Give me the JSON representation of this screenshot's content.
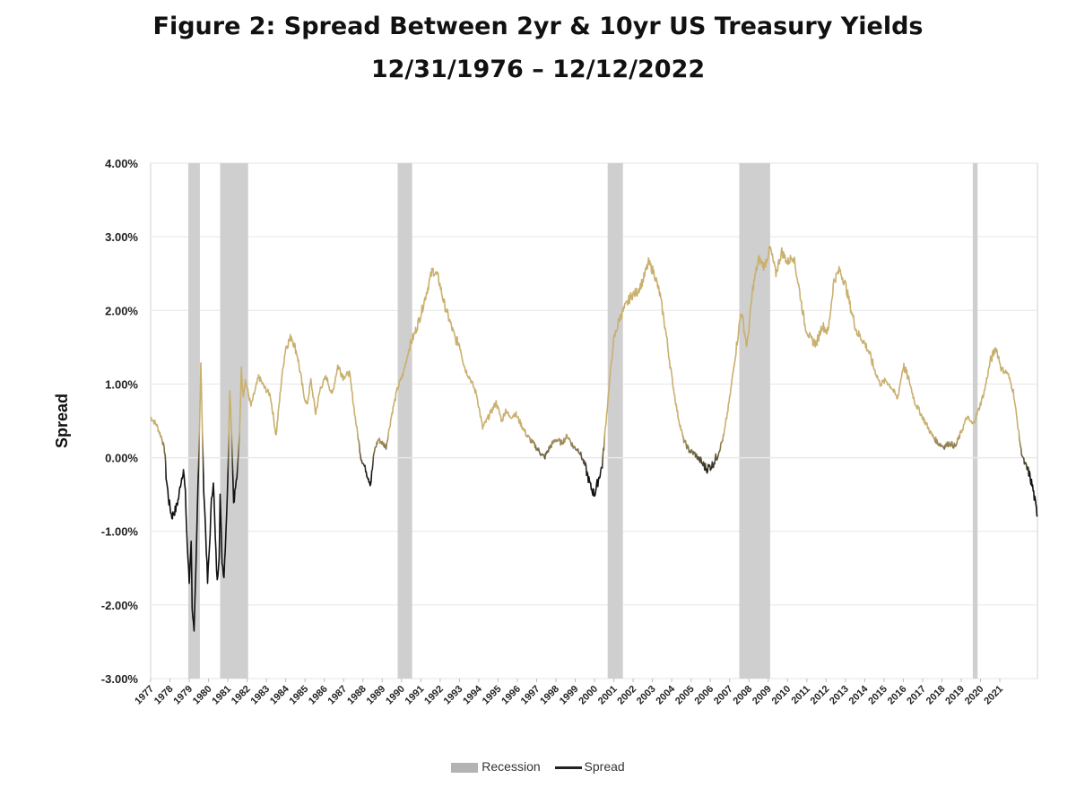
{
  "chart_data": {
    "type": "line",
    "title": "Figure 2:  Spread Between 2yr & 10yr US Treasury Yields",
    "subtitle": "12/31/1976 – 12/12/2022",
    "xlabel": "",
    "ylabel": "Spread",
    "ylim": [
      -3.0,
      4.0
    ],
    "yticks": [
      "4.00%",
      "3.00%",
      "2.00%",
      "1.00%",
      "0.00%",
      "-1.00%",
      "-2.00%",
      "-3.00%"
    ],
    "ytick_values": [
      4,
      3,
      2,
      1,
      0,
      -1,
      -2,
      -3
    ],
    "xlim": [
      1977.0,
      2022.95
    ],
    "xticks": [
      "1977",
      "1978",
      "1979",
      "1980",
      "1981",
      "1982",
      "1983",
      "1984",
      "1985",
      "1986",
      "1987",
      "1988",
      "1989",
      "1990",
      "1991",
      "1992",
      "1993",
      "1994",
      "1995",
      "1996",
      "1997",
      "1998",
      "1999",
      "2000",
      "2001",
      "2002",
      "2003",
      "2004",
      "2005",
      "2006",
      "2007",
      "2008",
      "2009",
      "2010",
      "2011",
      "2012",
      "2013",
      "2014",
      "2015",
      "2016",
      "2017",
      "2018",
      "2019",
      "2020",
      "2021"
    ],
    "colors": {
      "positive": "#c9b06e",
      "negative": "#111111",
      "recession": "#cfcfcf",
      "zero": "#e3e3e3",
      "grid": "#e6e6e6",
      "axis": "#d0d0d0"
    },
    "recessions": [
      [
        1978.95,
        1979.55
      ],
      [
        1980.6,
        1982.05
      ],
      [
        1989.8,
        1990.55
      ],
      [
        2000.68,
        2001.47
      ],
      [
        2007.5,
        2009.1
      ],
      [
        2019.6,
        2019.85
      ]
    ],
    "legend": [
      {
        "name": "Recession",
        "kind": "band"
      },
      {
        "name": "Spread",
        "kind": "line"
      }
    ],
    "series": [
      {
        "name": "Spread",
        "x": [
          1977.0,
          1977.3,
          1977.6,
          1977.75,
          1977.8,
          1977.95,
          1978.1,
          1978.3,
          1978.45,
          1978.55,
          1978.7,
          1978.8,
          1978.9,
          1979.0,
          1979.1,
          1979.15,
          1979.25,
          1979.35,
          1979.45,
          1979.55,
          1979.6,
          1979.65,
          1979.75,
          1979.85,
          1979.95,
          1980.05,
          1980.15,
          1980.25,
          1980.35,
          1980.45,
          1980.55,
          1980.6,
          1980.7,
          1980.8,
          1980.9,
          1981.0,
          1981.1,
          1981.2,
          1981.3,
          1981.4,
          1981.5,
          1981.6,
          1981.7,
          1981.8,
          1981.9,
          1982.0,
          1982.2,
          1982.4,
          1982.6,
          1982.9,
          1983.2,
          1983.5,
          1983.8,
          1984.0,
          1984.3,
          1984.6,
          1984.9,
          1985.1,
          1985.3,
          1985.55,
          1985.8,
          1986.1,
          1986.4,
          1986.7,
          1987.0,
          1987.3,
          1987.6,
          1987.9,
          1988.2,
          1988.4,
          1988.6,
          1988.8,
          1989.0,
          1989.2,
          1989.5,
          1989.8,
          1990.1,
          1990.4,
          1990.7,
          1991.0,
          1991.3,
          1991.6,
          1991.9,
          1992.2,
          1992.5,
          1992.8,
          1993.0,
          1993.3,
          1993.6,
          1993.9,
          1994.2,
          1994.4,
          1994.6,
          1994.9,
          1995.2,
          1995.4,
          1995.6,
          1995.9,
          1996.2,
          1996.5,
          1996.8,
          1997.1,
          1997.4,
          1997.7,
          1998.0,
          1998.3,
          1998.6,
          1998.9,
          1999.2,
          1999.5,
          1999.8,
          2000.0,
          2000.2,
          2000.4,
          2000.6,
          2000.8,
          2001.0,
          2001.3,
          2001.6,
          2001.9,
          2002.2,
          2002.5,
          2002.8,
          2003.1,
          2003.4,
          2003.7,
          2004.0,
          2004.3,
          2004.6,
          2004.9,
          2005.2,
          2005.5,
          2005.8,
          2006.1,
          2006.4,
          2006.7,
          2007.0,
          2007.3,
          2007.6,
          2007.9,
          2008.2,
          2008.5,
          2008.8,
          2009.1,
          2009.4,
          2009.7,
          2010.0,
          2010.3,
          2010.6,
          2010.9,
          2011.2,
          2011.5,
          2011.8,
          2012.1,
          2012.4,
          2012.7,
          2013.0,
          2013.3,
          2013.6,
          2013.9,
          2014.2,
          2014.5,
          2014.8,
          2015.1,
          2015.4,
          2015.7,
          2016.0,
          2016.3,
          2016.6,
          2016.9,
          2017.2,
          2017.5,
          2017.8,
          2018.1,
          2018.4,
          2018.7,
          2019.0,
          2019.3,
          2019.6,
          2019.9,
          2020.2,
          2020.5,
          2020.8,
          2021.1,
          2021.4,
          2021.7,
          2021.9,
          2022.1,
          2022.3,
          2022.5,
          2022.7,
          2022.95
        ],
        "y": [
          0.55,
          0.45,
          0.25,
          0.05,
          -0.25,
          -0.6,
          -0.8,
          -0.7,
          -0.55,
          -0.35,
          -0.15,
          -0.5,
          -1.2,
          -1.7,
          -1.1,
          -2.0,
          -2.4,
          -1.5,
          -0.4,
          0.6,
          1.3,
          0.7,
          -0.4,
          -1.0,
          -1.7,
          -1.2,
          -0.6,
          -0.3,
          -1.1,
          -1.7,
          -1.3,
          -0.5,
          -1.4,
          -1.6,
          -1.0,
          -0.3,
          0.95,
          0.3,
          -0.6,
          -0.4,
          -0.2,
          0.3,
          1.2,
          0.85,
          1.05,
          0.95,
          0.7,
          0.9,
          1.1,
          0.95,
          0.85,
          0.3,
          1.1,
          1.5,
          1.65,
          1.4,
          0.9,
          0.7,
          1.05,
          0.6,
          0.95,
          1.1,
          0.85,
          1.25,
          1.1,
          1.15,
          0.55,
          0.0,
          -0.2,
          -0.35,
          0.1,
          0.25,
          0.2,
          0.15,
          0.6,
          0.95,
          1.15,
          1.5,
          1.7,
          1.95,
          2.25,
          2.55,
          2.45,
          2.1,
          1.85,
          1.6,
          1.55,
          1.2,
          1.05,
          0.85,
          0.4,
          0.5,
          0.6,
          0.75,
          0.5,
          0.65,
          0.55,
          0.6,
          0.45,
          0.3,
          0.2,
          0.1,
          0.0,
          0.15,
          0.25,
          0.2,
          0.3,
          0.15,
          0.1,
          -0.1,
          -0.4,
          -0.5,
          -0.3,
          -0.1,
          0.5,
          1.1,
          1.6,
          1.9,
          2.05,
          2.2,
          2.25,
          2.4,
          2.65,
          2.5,
          2.2,
          1.7,
          1.1,
          0.6,
          0.25,
          0.1,
          0.05,
          -0.05,
          -0.15,
          -0.1,
          0.05,
          0.3,
          0.8,
          1.4,
          2.0,
          1.5,
          2.3,
          2.7,
          2.6,
          2.85,
          2.5,
          2.8,
          2.65,
          2.75,
          2.3,
          1.8,
          1.6,
          1.55,
          1.8,
          1.7,
          2.4,
          2.55,
          2.35,
          2.0,
          1.7,
          1.6,
          1.45,
          1.2,
          1.0,
          1.05,
          0.95,
          0.8,
          1.25,
          1.05,
          0.75,
          0.6,
          0.45,
          0.3,
          0.2,
          0.15,
          0.2,
          0.15,
          0.35,
          0.55,
          0.45,
          0.65,
          0.9,
          1.3,
          1.5,
          1.2,
          1.15,
          0.9,
          0.5,
          0.1,
          -0.1,
          -0.2,
          -0.4,
          -0.8
        ]
      }
    ]
  }
}
